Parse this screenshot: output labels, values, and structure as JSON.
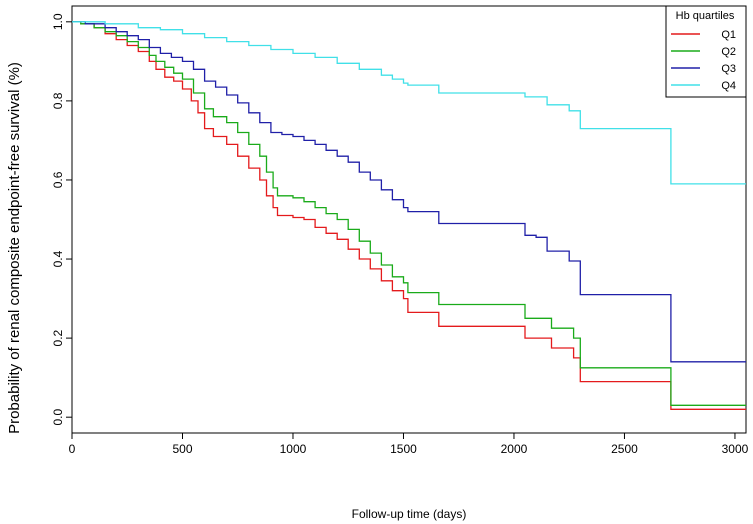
{
  "chart_data": {
    "type": "line",
    "xlabel": "Follow-up time (days)",
    "ylabel": "Probability of renal composite endpoint-free survival (%)",
    "xlim": [
      0,
      3050
    ],
    "ylim": [
      -0.04,
      1.04
    ],
    "x_ticks": [
      0,
      500,
      1000,
      1500,
      2000,
      2500,
      3000
    ],
    "x_tick_labels": [
      "0",
      "500",
      "1000",
      "1500",
      "2000",
      "2500",
      "3000"
    ],
    "y_ticks": [
      0.0,
      0.2,
      0.4,
      0.6,
      0.8,
      1.0
    ],
    "y_tick_labels": [
      "0.0",
      "0.2",
      "0.4",
      "0.6",
      "0.8",
      "1.0"
    ],
    "grid": false,
    "legend": {
      "title": "Hb quartiles",
      "position": "top-right"
    },
    "series": [
      {
        "name": "Q1",
        "color": "#e41a1c",
        "points": [
          [
            0,
            1.0
          ],
          [
            40,
            0.995
          ],
          [
            100,
            0.985
          ],
          [
            150,
            0.97
          ],
          [
            200,
            0.955
          ],
          [
            250,
            0.94
          ],
          [
            300,
            0.925
          ],
          [
            350,
            0.9
          ],
          [
            380,
            0.88
          ],
          [
            420,
            0.86
          ],
          [
            460,
            0.85
          ],
          [
            500,
            0.83
          ],
          [
            540,
            0.8
          ],
          [
            570,
            0.77
          ],
          [
            600,
            0.73
          ],
          [
            640,
            0.71
          ],
          [
            700,
            0.69
          ],
          [
            750,
            0.66
          ],
          [
            800,
            0.63
          ],
          [
            850,
            0.6
          ],
          [
            880,
            0.56
          ],
          [
            910,
            0.53
          ],
          [
            930,
            0.51
          ],
          [
            1000,
            0.505
          ],
          [
            1050,
            0.5
          ],
          [
            1100,
            0.48
          ],
          [
            1150,
            0.465
          ],
          [
            1200,
            0.45
          ],
          [
            1250,
            0.425
          ],
          [
            1300,
            0.4
          ],
          [
            1350,
            0.375
          ],
          [
            1400,
            0.345
          ],
          [
            1450,
            0.32
          ],
          [
            1500,
            0.3
          ],
          [
            1520,
            0.265
          ],
          [
            1660,
            0.23
          ],
          [
            2050,
            0.2
          ],
          [
            2170,
            0.175
          ],
          [
            2270,
            0.15
          ],
          [
            2300,
            0.09
          ],
          [
            2710,
            0.02
          ],
          [
            3050,
            0.02
          ]
        ]
      },
      {
        "name": "Q2",
        "color": "#1aab1a",
        "points": [
          [
            0,
            1.0
          ],
          [
            40,
            0.995
          ],
          [
            100,
            0.985
          ],
          [
            150,
            0.975
          ],
          [
            200,
            0.965
          ],
          [
            250,
            0.95
          ],
          [
            300,
            0.935
          ],
          [
            350,
            0.915
          ],
          [
            380,
            0.9
          ],
          [
            420,
            0.885
          ],
          [
            460,
            0.87
          ],
          [
            500,
            0.855
          ],
          [
            550,
            0.82
          ],
          [
            600,
            0.78
          ],
          [
            640,
            0.76
          ],
          [
            700,
            0.745
          ],
          [
            750,
            0.72
          ],
          [
            800,
            0.69
          ],
          [
            850,
            0.66
          ],
          [
            880,
            0.62
          ],
          [
            910,
            0.58
          ],
          [
            930,
            0.56
          ],
          [
            1000,
            0.555
          ],
          [
            1050,
            0.545
          ],
          [
            1100,
            0.53
          ],
          [
            1150,
            0.515
          ],
          [
            1200,
            0.5
          ],
          [
            1250,
            0.475
          ],
          [
            1300,
            0.445
          ],
          [
            1350,
            0.415
          ],
          [
            1400,
            0.385
          ],
          [
            1450,
            0.355
          ],
          [
            1500,
            0.34
          ],
          [
            1520,
            0.315
          ],
          [
            1660,
            0.285
          ],
          [
            2050,
            0.25
          ],
          [
            2170,
            0.225
          ],
          [
            2270,
            0.2
          ],
          [
            2300,
            0.125
          ],
          [
            2710,
            0.03
          ],
          [
            3050,
            0.03
          ]
        ]
      },
      {
        "name": "Q3",
        "color": "#2020a8",
        "points": [
          [
            0,
            1.0
          ],
          [
            60,
            0.995
          ],
          [
            150,
            0.985
          ],
          [
            200,
            0.975
          ],
          [
            250,
            0.965
          ],
          [
            300,
            0.955
          ],
          [
            350,
            0.935
          ],
          [
            400,
            0.92
          ],
          [
            450,
            0.91
          ],
          [
            500,
            0.9
          ],
          [
            550,
            0.88
          ],
          [
            600,
            0.85
          ],
          [
            650,
            0.835
          ],
          [
            700,
            0.815
          ],
          [
            750,
            0.795
          ],
          [
            800,
            0.77
          ],
          [
            850,
            0.745
          ],
          [
            900,
            0.72
          ],
          [
            950,
            0.715
          ],
          [
            1000,
            0.71
          ],
          [
            1050,
            0.7
          ],
          [
            1100,
            0.69
          ],
          [
            1150,
            0.675
          ],
          [
            1200,
            0.66
          ],
          [
            1250,
            0.645
          ],
          [
            1300,
            0.62
          ],
          [
            1350,
            0.6
          ],
          [
            1400,
            0.575
          ],
          [
            1450,
            0.55
          ],
          [
            1500,
            0.53
          ],
          [
            1520,
            0.52
          ],
          [
            1660,
            0.49
          ],
          [
            2050,
            0.46
          ],
          [
            2100,
            0.455
          ],
          [
            2150,
            0.42
          ],
          [
            2250,
            0.395
          ],
          [
            2300,
            0.31
          ],
          [
            2710,
            0.14
          ],
          [
            3050,
            0.14
          ]
        ]
      },
      {
        "name": "Q4",
        "color": "#40e0e8",
        "points": [
          [
            0,
            1.0
          ],
          [
            150,
            0.995
          ],
          [
            300,
            0.985
          ],
          [
            400,
            0.98
          ],
          [
            500,
            0.97
          ],
          [
            600,
            0.96
          ],
          [
            700,
            0.95
          ],
          [
            800,
            0.94
          ],
          [
            900,
            0.93
          ],
          [
            1000,
            0.92
          ],
          [
            1100,
            0.91
          ],
          [
            1200,
            0.895
          ],
          [
            1300,
            0.88
          ],
          [
            1400,
            0.865
          ],
          [
            1450,
            0.855
          ],
          [
            1500,
            0.845
          ],
          [
            1520,
            0.84
          ],
          [
            1660,
            0.82
          ],
          [
            2050,
            0.81
          ],
          [
            2150,
            0.79
          ],
          [
            2250,
            0.775
          ],
          [
            2300,
            0.73
          ],
          [
            2710,
            0.59
          ],
          [
            3050,
            0.59
          ]
        ]
      }
    ]
  }
}
